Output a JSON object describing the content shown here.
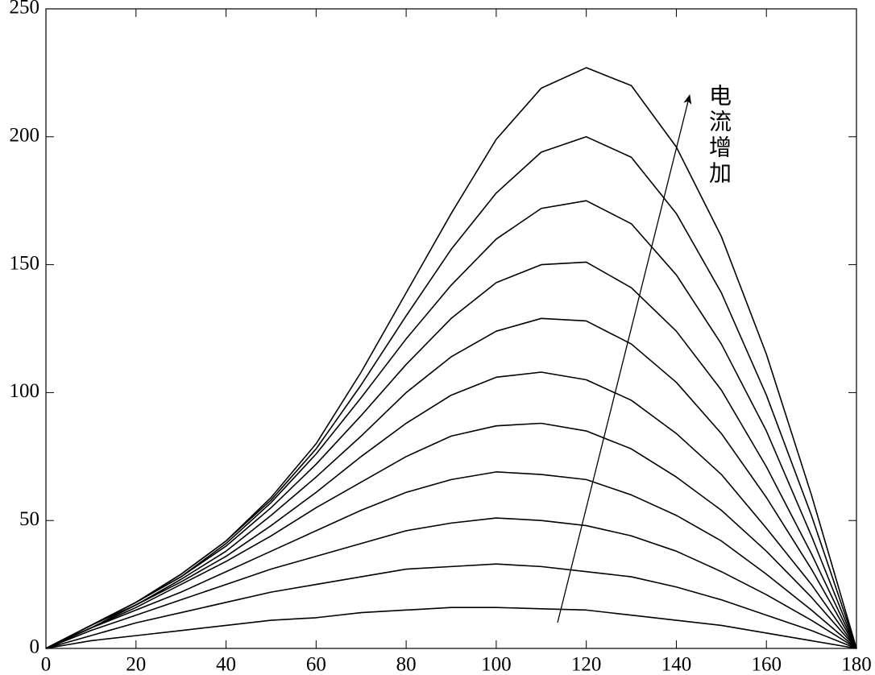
{
  "chart_data": {
    "type": "line",
    "annotation": "电流增加",
    "x": [
      0,
      10,
      20,
      30,
      40,
      50,
      60,
      70,
      80,
      90,
      100,
      110,
      120,
      130,
      140,
      150,
      160,
      170,
      180
    ],
    "xlim": [
      0,
      180
    ],
    "xticks": [
      0,
      20,
      40,
      60,
      80,
      100,
      120,
      140,
      160,
      180
    ],
    "ylim": [
      0,
      250
    ],
    "yticks": [
      0,
      50,
      100,
      150,
      200,
      250
    ],
    "grid": false,
    "series": [
      {
        "color": "#000000",
        "values": [
          0,
          3,
          5,
          7,
          9,
          11,
          12,
          14,
          15,
          16,
          16,
          15.5,
          15,
          13,
          11,
          9,
          6,
          3,
          0
        ]
      },
      {
        "color": "#000000",
        "values": [
          0,
          5,
          10,
          14,
          18,
          22,
          25,
          28,
          31,
          32,
          33,
          32,
          30,
          28,
          24,
          19,
          13,
          7,
          0
        ]
      },
      {
        "color": "#000000",
        "values": [
          0,
          7,
          13,
          19,
          25,
          31,
          36,
          41,
          46,
          49,
          51,
          50,
          48,
          44,
          38,
          30,
          21,
          11,
          0
        ]
      },
      {
        "color": "#000000",
        "values": [
          0,
          8,
          15,
          22,
          30,
          38,
          46,
          54,
          61,
          66,
          69,
          68,
          66,
          60,
          52,
          42,
          29,
          15,
          0
        ]
      },
      {
        "color": "#000000",
        "values": [
          0,
          8,
          16,
          25,
          34,
          44,
          55,
          65,
          75,
          83,
          87,
          88,
          85,
          78,
          67,
          54,
          38,
          20,
          0
        ]
      },
      {
        "color": "#000000",
        "values": [
          0,
          8,
          17,
          26,
          36,
          48,
          61,
          75,
          88,
          99,
          106,
          108,
          105,
          97,
          84,
          68,
          47,
          25,
          0
        ]
      },
      {
        "color": "#000000",
        "values": [
          0,
          9,
          17,
          27,
          38,
          52,
          67,
          83,
          100,
          114,
          124,
          129,
          128,
          119,
          104,
          84,
          59,
          31,
          0
        ]
      },
      {
        "color": "#000000",
        "values": [
          0,
          9,
          18,
          28,
          40,
          55,
          72,
          91,
          111,
          129,
          143,
          150,
          151,
          141,
          124,
          101,
          71,
          37,
          0
        ]
      },
      {
        "color": "#000000",
        "values": [
          0,
          9,
          18,
          28,
          41,
          57,
          76,
          98,
          121,
          142,
          160,
          172,
          175,
          166,
          146,
          119,
          85,
          44,
          0
        ]
      },
      {
        "color": "#000000",
        "values": [
          0,
          9,
          18,
          29,
          42,
          58,
          78,
          103,
          130,
          156,
          178,
          194,
          200,
          192,
          170,
          139,
          99,
          52,
          0
        ]
      },
      {
        "color": "#000000",
        "values": [
          0,
          9,
          18,
          29,
          42,
          59,
          80,
          108,
          139,
          170,
          199,
          219,
          227,
          220,
          196,
          161,
          115,
          60,
          0
        ]
      }
    ]
  }
}
